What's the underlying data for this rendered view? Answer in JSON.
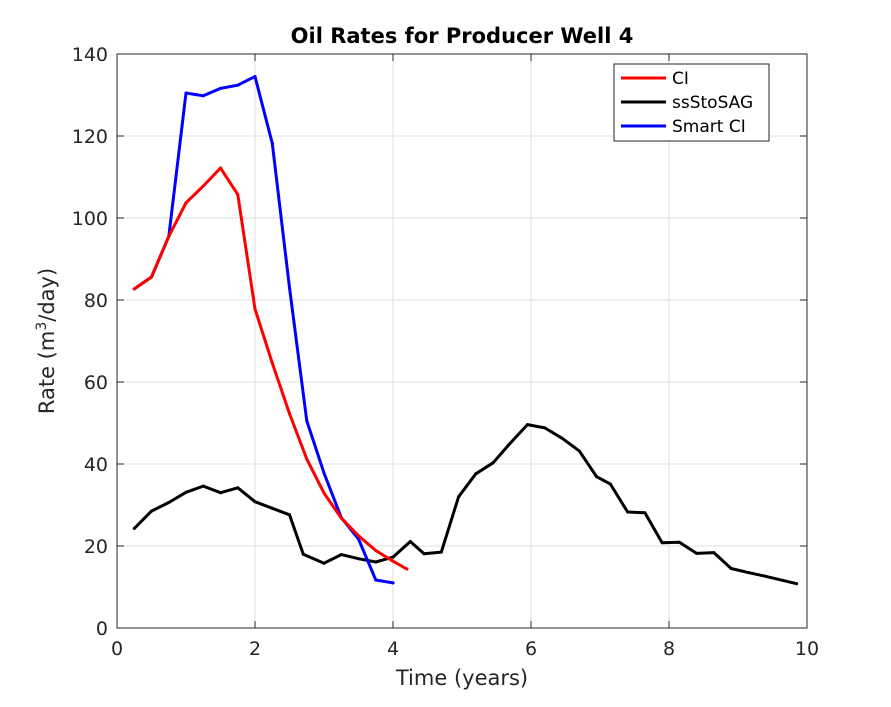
{
  "chart_data": {
    "type": "line",
    "title": "Oil Rates for Producer Well 4",
    "xlabel": "Time (years)",
    "ylabel": {
      "prefix": "Rate (m",
      "sup": "3",
      "suffix": "/day)"
    },
    "xlim": [
      0,
      10
    ],
    "ylim": [
      0,
      140
    ],
    "xticks": [
      0,
      2,
      4,
      6,
      8,
      10
    ],
    "yticks": [
      0,
      20,
      40,
      60,
      80,
      100,
      120,
      140
    ],
    "grid": true,
    "legend_location": "top-right",
    "series": [
      {
        "name": "CI",
        "color": "#ff0000",
        "points": [
          [
            0.25,
            82.7
          ],
          [
            0.5,
            85.6
          ],
          [
            0.75,
            95.5
          ],
          [
            1.0,
            103.7
          ],
          [
            1.25,
            107.8
          ],
          [
            1.5,
            112.2
          ],
          [
            1.75,
            105.7
          ],
          [
            2.0,
            77.8
          ],
          [
            2.25,
            64.6
          ],
          [
            2.5,
            52.3
          ],
          [
            2.75,
            41.2
          ],
          [
            3.0,
            32.9
          ],
          [
            3.25,
            26.8
          ],
          [
            3.5,
            22.5
          ],
          [
            3.75,
            18.9
          ],
          [
            4.0,
            16.3
          ],
          [
            4.2,
            14.4
          ]
        ]
      },
      {
        "name": "ssStoSAG",
        "color": "#000000",
        "points": [
          [
            0.25,
            24.3
          ],
          [
            0.5,
            28.5
          ],
          [
            0.75,
            30.6
          ],
          [
            1.0,
            33.1
          ],
          [
            1.25,
            34.6
          ],
          [
            1.5,
            33.0
          ],
          [
            1.75,
            34.2
          ],
          [
            2.0,
            30.8
          ],
          [
            2.25,
            29.2
          ],
          [
            2.5,
            27.6
          ],
          [
            2.7,
            18.0
          ],
          [
            3.0,
            15.8
          ],
          [
            3.25,
            17.9
          ],
          [
            3.5,
            16.9
          ],
          [
            3.75,
            16.1
          ],
          [
            4.0,
            17.3
          ],
          [
            4.25,
            21.1
          ],
          [
            4.45,
            18.1
          ],
          [
            4.7,
            18.5
          ],
          [
            4.95,
            32.0
          ],
          [
            5.2,
            37.6
          ],
          [
            5.45,
            40.3
          ],
          [
            5.7,
            45.1
          ],
          [
            5.95,
            49.6
          ],
          [
            6.2,
            48.8
          ],
          [
            6.45,
            46.3
          ],
          [
            6.7,
            43.2
          ],
          [
            6.95,
            36.9
          ],
          [
            7.15,
            35.1
          ],
          [
            7.4,
            28.3
          ],
          [
            7.65,
            28.1
          ],
          [
            7.9,
            20.8
          ],
          [
            8.15,
            20.9
          ],
          [
            8.4,
            18.2
          ],
          [
            8.65,
            18.4
          ],
          [
            8.9,
            14.5
          ],
          [
            9.15,
            13.5
          ],
          [
            9.4,
            12.6
          ],
          [
            9.65,
            11.6
          ],
          [
            9.85,
            10.8
          ]
        ]
      },
      {
        "name": "Smart CI",
        "color": "#0000ff",
        "points": [
          [
            0.25,
            82.7
          ],
          [
            0.5,
            85.6
          ],
          [
            0.75,
            95.5
          ],
          [
            1.0,
            130.5
          ],
          [
            1.25,
            129.8
          ],
          [
            1.5,
            131.6
          ],
          [
            1.75,
            132.4
          ],
          [
            2.0,
            134.5
          ],
          [
            2.25,
            118.2
          ],
          [
            2.5,
            83.0
          ],
          [
            2.75,
            50.5
          ],
          [
            3.0,
            37.8
          ],
          [
            3.25,
            26.9
          ],
          [
            3.5,
            21.7
          ],
          [
            3.75,
            11.7
          ],
          [
            4.0,
            11.0
          ]
        ]
      }
    ]
  }
}
